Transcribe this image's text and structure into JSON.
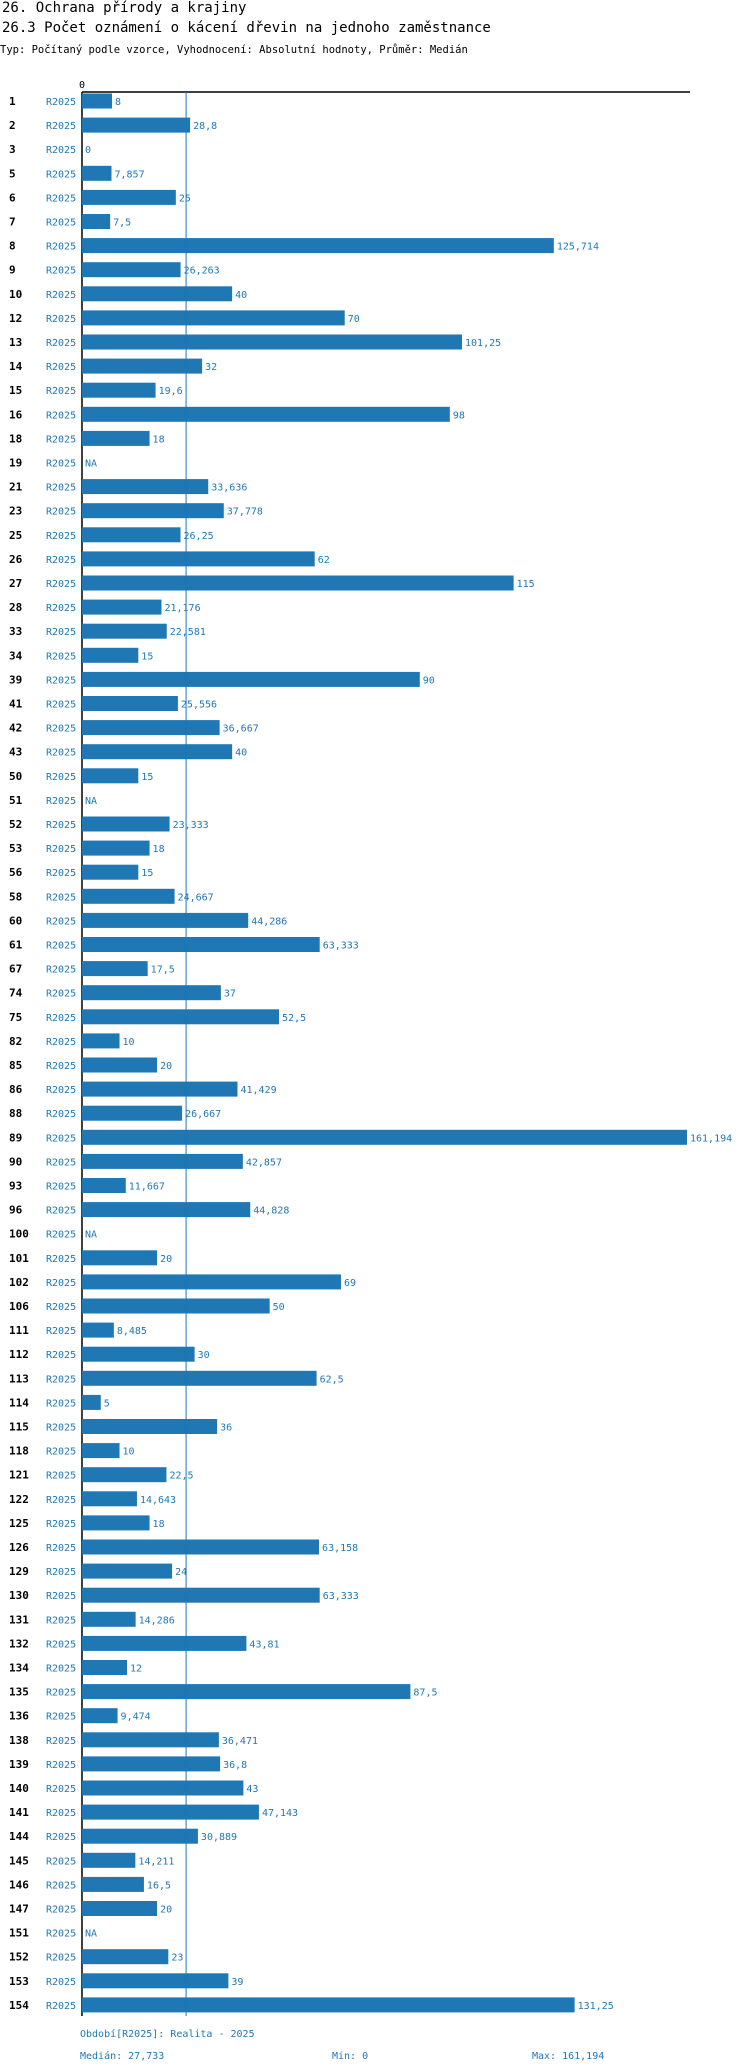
{
  "header": {
    "title": "26. Ochrana přírody a krajiny",
    "subtitle_title": "26.3 Počet oznámení o kácení dřevin na jednoho zaměstnance",
    "description": "Typ: Počítaný podle vzorce, Vyhodnocení: Absolutní hodnoty, Průměr: Medián"
  },
  "footer": {
    "period_label": "Období[R2025]: Realita - 2025",
    "median_label": "Medián: 27,733",
    "min_label": "Min: 0",
    "max_label": "Max: 161,194"
  },
  "colors": {
    "bar": "#1f77b4",
    "median_line": "#1f77b4",
    "axis": "#000000"
  },
  "chart_data": {
    "type": "bar",
    "orientation": "horizontal",
    "title": "26.3 Počet oznámení o kácení dřevin na jednoho zaměstnance",
    "x_tick_label": "0",
    "xlim": [
      0,
      161.194
    ],
    "median": 27.733,
    "min": 0,
    "max": 161.194,
    "period": "R2025",
    "rows": [
      {
        "id": "1",
        "value": 8,
        "label": "8"
      },
      {
        "id": "2",
        "value": 28.8,
        "label": "28,8"
      },
      {
        "id": "3",
        "value": 0,
        "label": "0"
      },
      {
        "id": "5",
        "value": 7.857,
        "label": "7,857"
      },
      {
        "id": "6",
        "value": 25,
        "label": "25"
      },
      {
        "id": "7",
        "value": 7.5,
        "label": "7,5"
      },
      {
        "id": "8",
        "value": 125.714,
        "label": "125,714"
      },
      {
        "id": "9",
        "value": 26.263,
        "label": "26,263"
      },
      {
        "id": "10",
        "value": 40,
        "label": "40"
      },
      {
        "id": "12",
        "value": 70,
        "label": "70"
      },
      {
        "id": "13",
        "value": 101.25,
        "label": "101,25"
      },
      {
        "id": "14",
        "value": 32,
        "label": "32"
      },
      {
        "id": "15",
        "value": 19.6,
        "label": "19,6"
      },
      {
        "id": "16",
        "value": 98,
        "label": "98"
      },
      {
        "id": "18",
        "value": 18,
        "label": "18"
      },
      {
        "id": "19",
        "value": null,
        "label": "NA"
      },
      {
        "id": "21",
        "value": 33.636,
        "label": "33,636"
      },
      {
        "id": "23",
        "value": 37.778,
        "label": "37,778"
      },
      {
        "id": "25",
        "value": 26.25,
        "label": "26,25"
      },
      {
        "id": "26",
        "value": 62,
        "label": "62"
      },
      {
        "id": "27",
        "value": 115,
        "label": "115"
      },
      {
        "id": "28",
        "value": 21.176,
        "label": "21,176"
      },
      {
        "id": "33",
        "value": 22.581,
        "label": "22,581"
      },
      {
        "id": "34",
        "value": 15,
        "label": "15"
      },
      {
        "id": "39",
        "value": 90,
        "label": "90"
      },
      {
        "id": "41",
        "value": 25.556,
        "label": "25,556"
      },
      {
        "id": "42",
        "value": 36.667,
        "label": "36,667"
      },
      {
        "id": "43",
        "value": 40,
        "label": "40"
      },
      {
        "id": "50",
        "value": 15,
        "label": "15"
      },
      {
        "id": "51",
        "value": null,
        "label": "NA"
      },
      {
        "id": "52",
        "value": 23.333,
        "label": "23,333"
      },
      {
        "id": "53",
        "value": 18,
        "label": "18"
      },
      {
        "id": "56",
        "value": 15,
        "label": "15"
      },
      {
        "id": "58",
        "value": 24.667,
        "label": "24,667"
      },
      {
        "id": "60",
        "value": 44.286,
        "label": "44,286"
      },
      {
        "id": "61",
        "value": 63.333,
        "label": "63,333"
      },
      {
        "id": "67",
        "value": 17.5,
        "label": "17,5"
      },
      {
        "id": "74",
        "value": 37,
        "label": "37"
      },
      {
        "id": "75",
        "value": 52.5,
        "label": "52,5"
      },
      {
        "id": "82",
        "value": 10,
        "label": "10"
      },
      {
        "id": "85",
        "value": 20,
        "label": "20"
      },
      {
        "id": "86",
        "value": 41.429,
        "label": "41,429"
      },
      {
        "id": "88",
        "value": 26.667,
        "label": "26,667"
      },
      {
        "id": "89",
        "value": 161.194,
        "label": "161,194"
      },
      {
        "id": "90",
        "value": 42.857,
        "label": "42,857"
      },
      {
        "id": "93",
        "value": 11.667,
        "label": "11,667"
      },
      {
        "id": "96",
        "value": 44.828,
        "label": "44,828"
      },
      {
        "id": "100",
        "value": null,
        "label": "NA"
      },
      {
        "id": "101",
        "value": 20,
        "label": "20"
      },
      {
        "id": "102",
        "value": 69,
        "label": "69"
      },
      {
        "id": "106",
        "value": 50,
        "label": "50"
      },
      {
        "id": "111",
        "value": 8.485,
        "label": "8,485"
      },
      {
        "id": "112",
        "value": 30,
        "label": "30"
      },
      {
        "id": "113",
        "value": 62.5,
        "label": "62,5"
      },
      {
        "id": "114",
        "value": 5,
        "label": "5"
      },
      {
        "id": "115",
        "value": 36,
        "label": "36"
      },
      {
        "id": "118",
        "value": 10,
        "label": "10"
      },
      {
        "id": "121",
        "value": 22.5,
        "label": "22,5"
      },
      {
        "id": "122",
        "value": 14.643,
        "label": "14,643"
      },
      {
        "id": "125",
        "value": 18,
        "label": "18"
      },
      {
        "id": "126",
        "value": 63.158,
        "label": "63,158"
      },
      {
        "id": "129",
        "value": 24,
        "label": "24"
      },
      {
        "id": "130",
        "value": 63.333,
        "label": "63,333"
      },
      {
        "id": "131",
        "value": 14.286,
        "label": "14,286"
      },
      {
        "id": "132",
        "value": 43.81,
        "label": "43,81"
      },
      {
        "id": "134",
        "value": 12,
        "label": "12"
      },
      {
        "id": "135",
        "value": 87.5,
        "label": "87,5"
      },
      {
        "id": "136",
        "value": 9.474,
        "label": "9,474"
      },
      {
        "id": "138",
        "value": 36.471,
        "label": "36,471"
      },
      {
        "id": "139",
        "value": 36.8,
        "label": "36,8"
      },
      {
        "id": "140",
        "value": 43,
        "label": "43"
      },
      {
        "id": "141",
        "value": 47.143,
        "label": "47,143"
      },
      {
        "id": "144",
        "value": 30.889,
        "label": "30,889"
      },
      {
        "id": "145",
        "value": 14.211,
        "label": "14,211"
      },
      {
        "id": "146",
        "value": 16.5,
        "label": "16,5"
      },
      {
        "id": "147",
        "value": 20,
        "label": "20"
      },
      {
        "id": "151",
        "value": null,
        "label": "NA"
      },
      {
        "id": "152",
        "value": 23,
        "label": "23"
      },
      {
        "id": "153",
        "value": 39,
        "label": "39"
      },
      {
        "id": "154",
        "value": 131.25,
        "label": "131,25"
      }
    ]
  }
}
